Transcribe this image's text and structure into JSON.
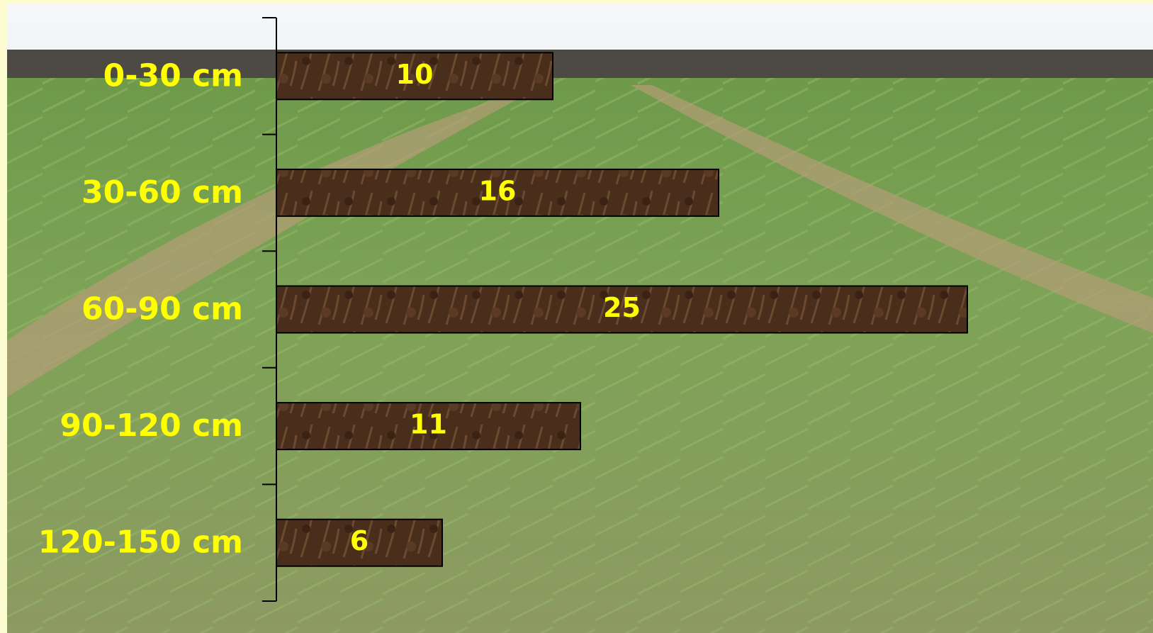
{
  "chart_data": {
    "type": "bar",
    "orientation": "horizontal",
    "categories": [
      "0-30 cm",
      "30-60 cm",
      "60-90 cm",
      "90-120 cm",
      "120-150 cm"
    ],
    "values": [
      10,
      16,
      25,
      11,
      6
    ],
    "color": "#4a2e1c",
    "label_color": "#ffff00"
  }
}
